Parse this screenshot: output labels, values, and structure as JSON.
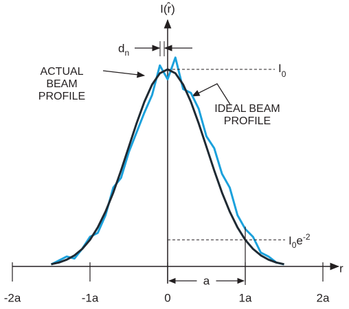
{
  "chart_data": {
    "type": "line",
    "y_label": "I(r̂)",
    "x_label": "r",
    "spacing_label": {
      "base": "d",
      "sub": "n"
    },
    "peak_label": {
      "base": "I",
      "sub": "0"
    },
    "tail_label": {
      "base": "I",
      "sub": "0",
      "exp_base": "e",
      "sup": "-2"
    },
    "dimension_label": "a",
    "x": [
      -1.5,
      -1.4,
      -1.3,
      -1.2,
      -1.1,
      -1.0,
      -0.9,
      -0.8,
      -0.7,
      -0.6,
      -0.5,
      -0.4,
      -0.3,
      -0.2,
      -0.1,
      0,
      0.1,
      0.2,
      0.3,
      0.4,
      0.5,
      0.6,
      0.7,
      0.8,
      0.9,
      1.0,
      1.1,
      1.2,
      1.3,
      1.4,
      1.5
    ],
    "series": [
      {
        "name": "ACTUAL BEAM PROFILE",
        "color": "#1ba1dc",
        "values": [
          0.01,
          0.03,
          0.05,
          0.04,
          0.09,
          0.15,
          0.17,
          0.26,
          0.4,
          0.45,
          0.58,
          0.68,
          0.78,
          0.87,
          1.02,
          0.95,
          1.06,
          0.9,
          0.88,
          0.8,
          0.66,
          0.6,
          0.47,
          0.4,
          0.26,
          0.19,
          0.15,
          0.07,
          0.05,
          0.02,
          0.01
        ]
      },
      {
        "name": "IDEAL BEAM PROFILE",
        "color": "#1f2a33",
        "values": [
          0.011,
          0.02,
          0.034,
          0.056,
          0.089,
          0.135,
          0.198,
          0.278,
          0.375,
          0.487,
          0.607,
          0.726,
          0.835,
          0.923,
          0.98,
          1,
          0.98,
          0.923,
          0.835,
          0.726,
          0.607,
          0.487,
          0.375,
          0.278,
          0.198,
          0.135,
          0.089,
          0.056,
          0.034,
          0.02,
          0.011
        ]
      }
    ],
    "xlim": [
      -2,
      2.2
    ],
    "ylim": [
      0,
      1.25
    ],
    "xticks": [
      {
        "value": -2,
        "label": "-2a"
      },
      {
        "value": -1,
        "label": "-1a"
      },
      0,
      {
        "value": 1,
        "label": "1a"
      },
      {
        "value": 2,
        "label": "2a"
      }
    ]
  }
}
